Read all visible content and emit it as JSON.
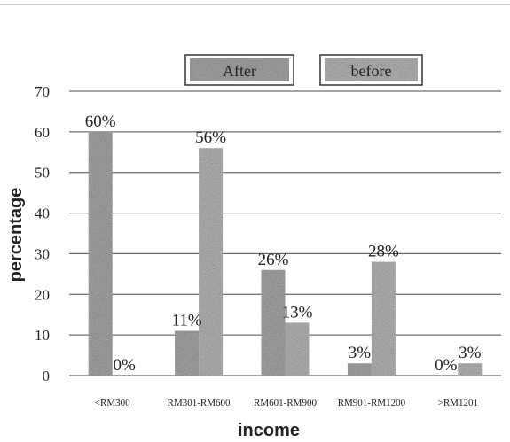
{
  "chart_data": {
    "type": "bar",
    "title": "",
    "xlabel": "income",
    "ylabel": "percentage",
    "ylim": [
      0,
      70
    ],
    "yticks": [
      0,
      10,
      20,
      30,
      40,
      50,
      60,
      70
    ],
    "grid": true,
    "legend_position": "top",
    "categories": [
      "<RM300",
      "RM301-RM600",
      "RM601-RM900",
      "RM901-RM1200",
      ">RM1201"
    ],
    "series": [
      {
        "name": "After",
        "values": [
          60,
          11,
          26,
          3,
          0
        ],
        "labels": [
          "60%",
          "11%",
          "26%",
          "3%",
          "0%"
        ]
      },
      {
        "name": "before",
        "values": [
          0,
          56,
          13,
          28,
          3
        ],
        "labels": [
          "0%",
          "56%",
          "13%",
          "28%",
          "3%"
        ]
      }
    ],
    "colors": {
      "after": "#a9a9a9",
      "before": "#b9b9b9",
      "grid": "#4a4a4a",
      "text": "#222222"
    }
  }
}
